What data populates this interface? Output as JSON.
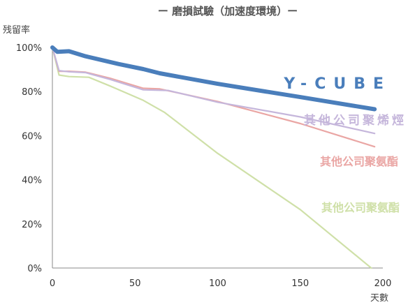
{
  "chart_data": {
    "type": "line",
    "title": "ー 磨損試驗（加速度環境）ー",
    "ylabel": "残留率",
    "xlabel": "天數",
    "xlim": [
      0,
      200
    ],
    "ylim": [
      0,
      100
    ],
    "xticks": [
      0,
      50,
      100,
      150,
      200
    ],
    "yticks": [
      0,
      20,
      40,
      60,
      80,
      100
    ],
    "ytick_labels": [
      "0%",
      "20%",
      "40%",
      "60%",
      "80%",
      "100%"
    ],
    "grid": false,
    "series": [
      {
        "name": "Y-CUBE",
        "color": "#4a7ebb",
        "points": [
          [
            0,
            100
          ],
          [
            3,
            98
          ],
          [
            10,
            98.3
          ],
          [
            20,
            96
          ],
          [
            40,
            92.5
          ],
          [
            55,
            90.2
          ],
          [
            65,
            88.3
          ],
          [
            100,
            83.5
          ],
          [
            150,
            77.5
          ],
          [
            195,
            72
          ]
        ]
      },
      {
        "name": "其他公司聚烯烴",
        "color": "#c5b6db",
        "points": [
          [
            0,
            100
          ],
          [
            4,
            89.5
          ],
          [
            10,
            89
          ],
          [
            20,
            88.6
          ],
          [
            35,
            85.5
          ],
          [
            55,
            80.8
          ],
          [
            70,
            80.5
          ],
          [
            100,
            75.2
          ],
          [
            150,
            68.5
          ],
          [
            195,
            61
          ]
        ]
      },
      {
        "name": "其他公司聚氨酯",
        "color": "#eaa6a4",
        "points": [
          [
            0,
            100
          ],
          [
            4,
            89.2
          ],
          [
            10,
            89.2
          ],
          [
            20,
            88.8
          ],
          [
            35,
            86
          ],
          [
            55,
            81.5
          ],
          [
            65,
            81.2
          ],
          [
            100,
            75.5
          ],
          [
            150,
            65.5
          ],
          [
            195,
            55
          ]
        ]
      },
      {
        "name": "其他公司聚氨酯",
        "color": "#cfe0a8",
        "points": [
          [
            0,
            100
          ],
          [
            4,
            87.5
          ],
          [
            10,
            86.8
          ],
          [
            22,
            86.5
          ],
          [
            35,
            82.5
          ],
          [
            55,
            76
          ],
          [
            68,
            70.5
          ],
          [
            100,
            52
          ],
          [
            150,
            26.5
          ],
          [
            193,
            0
          ]
        ]
      }
    ]
  }
}
